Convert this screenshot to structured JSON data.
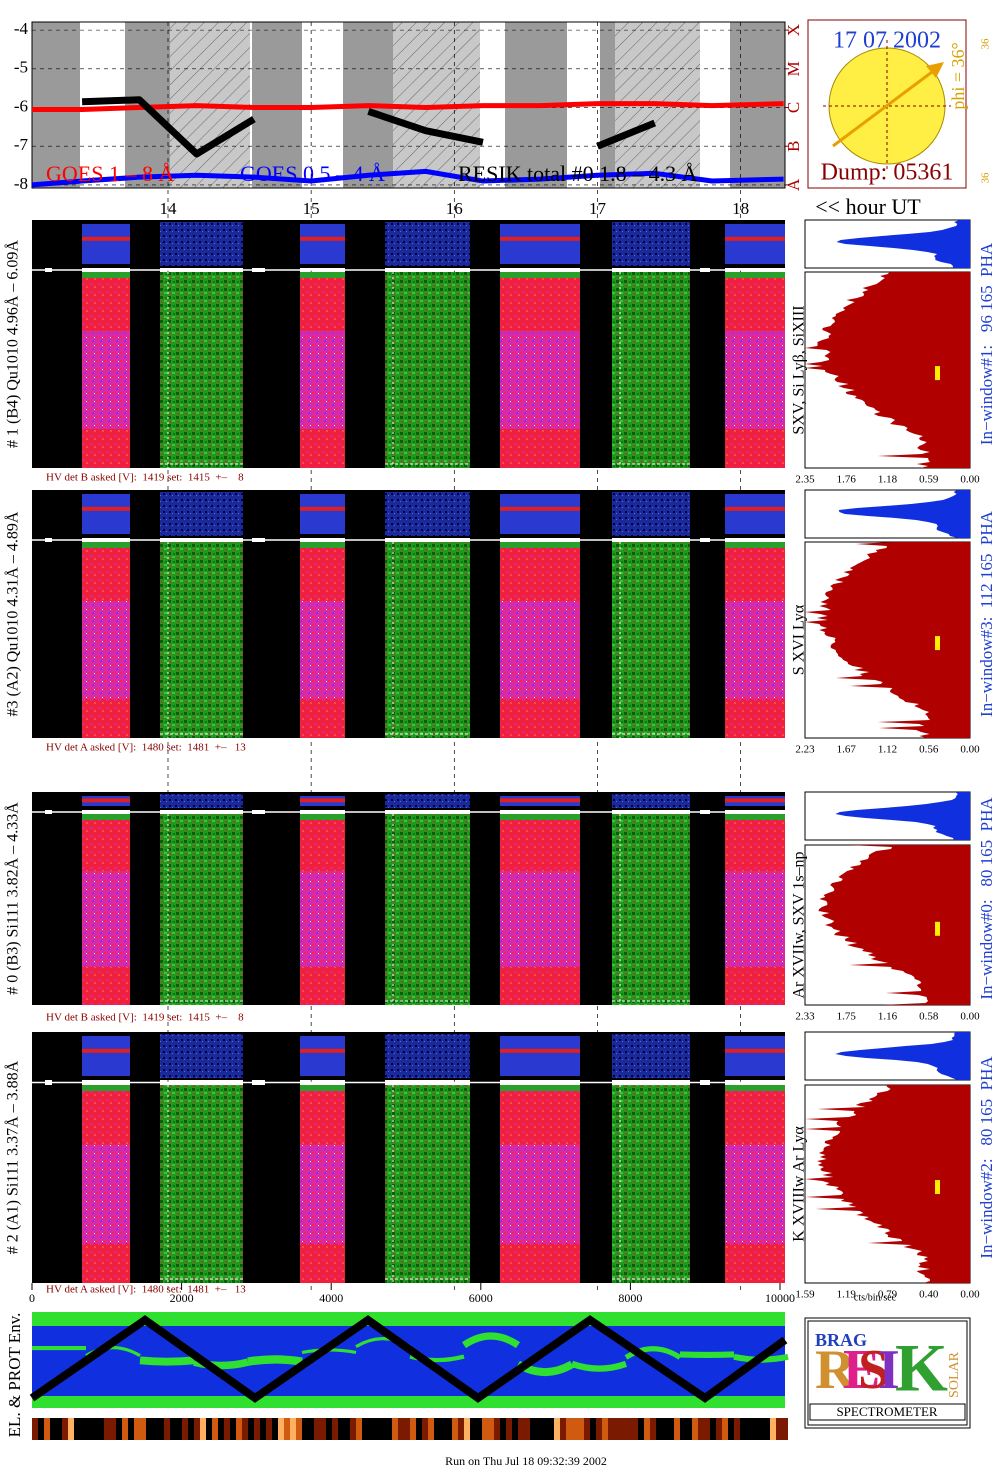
{
  "chart_data": {
    "type": "line",
    "x": [
      13.05,
      13.4,
      13.8,
      14.2,
      14.6,
      15.0,
      15.4,
      15.8,
      16.2,
      16.6,
      17.0,
      17.4,
      17.8,
      18.3
    ],
    "series": [
      {
        "name": "GOES 1 – 8 Å",
        "color": "#ff0000",
        "values": [
          -6.05,
          -6.05,
          -6.0,
          -5.95,
          -6.0,
          -6.0,
          -5.95,
          -6.0,
          -5.95,
          -5.95,
          -5.9,
          -5.9,
          -5.95,
          -5.9
        ]
      },
      {
        "name": "GOES 0.5 – 4 Å",
        "color": "#0000ff",
        "values": [
          -8.0,
          -7.9,
          -7.8,
          -7.75,
          -7.8,
          -7.9,
          -7.75,
          -7.65,
          -7.9,
          -7.85,
          -7.75,
          -7.7,
          -7.9,
          -7.85
        ]
      },
      {
        "name": "RESIK total #0 1.8 – 4.3 Å",
        "color": "#000000",
        "values": [
          null,
          -5.85,
          -5.8,
          -7.2,
          -6.3,
          null,
          -6.1,
          -6.6,
          -6.9,
          null,
          -7.0,
          -6.4,
          null,
          -6.0
        ]
      }
    ],
    "xlim": [
      13.05,
      18.31
    ],
    "xticks": [
      14,
      15,
      16,
      17,
      18
    ],
    "x_label": "<< hour UT",
    "ylim": [
      -8.08,
      -3.79
    ],
    "yticks": [
      -8,
      -7,
      -6,
      -5,
      -4
    ],
    "y2lim": [
      -8.08,
      -3.79
    ],
    "y2ticks": [
      {
        "value": -8,
        "label": "A"
      },
      {
        "value": -7,
        "label": "B"
      },
      {
        "value": -6,
        "label": "C"
      },
      {
        "value": -5,
        "label": "M"
      },
      {
        "value": -4,
        "label": "X"
      }
    ],
    "grid": true
  },
  "sun": {
    "date": "17 07 2002",
    "phi": "phi = 36°",
    "left": "36",
    "right": "36",
    "dump": "Dump: 05361"
  },
  "panels": [
    {
      "label": "# 1 (B4) Qu1010 4.96Å – 6.09Å",
      "hv": "HV det B asked [V]:  1419 set:  1415  +–    8",
      "line_id": "SXV, Si Lyβ, SiXIII",
      "window": "In−window#1:   96 165  PHA",
      "hist_ticks": [
        "2.35",
        "1.76",
        "1.18",
        "0.59",
        "0.00"
      ]
    },
    {
      "label": "#3 (A2) Qu1010  4.31Å – 4.89Å",
      "hv": "HV det A asked [V]:  1480 set:  1481  +–   13",
      "line_id": "S XVI Lyα",
      "window": "In−window#3:  112 165  PHA",
      "hist_ticks": [
        "2.23",
        "1.67",
        "1.12",
        "0.56",
        "0.00"
      ]
    },
    {
      "label": "# 0 (B3) Si111  3.82Å – 4.33Å",
      "hv": "HV det B asked [V]:  1419 set:  1415  +–    8",
      "line_id": "Ar XVIIw, SXV 1s–np",
      "window": "In−window#0:   80 165  PHA",
      "hist_ticks": [
        "2.33",
        "1.75",
        "1.16",
        "0.58",
        "0.00"
      ]
    },
    {
      "label": "# 2 (A1) Si111  3.37Å – 3.88Å",
      "hv": "HV det A asked [V]:  1480 set:  1481  +–   13",
      "line_id": "K XVIIIw  Ar Lyα",
      "window": "In−window#2:   80 165  PHA",
      "hist_ticks": [
        "1.59",
        "1.19",
        "0.79",
        "0.40",
        "0.00"
      ]
    }
  ],
  "pixel_axis": {
    "xlim": [
      0,
      10000
    ],
    "xticks": [
      0,
      2000,
      4000,
      6000,
      8000,
      10000
    ],
    "unit": "cts/bin/sec"
  },
  "env_label": "EL. & PROT Env.",
  "logo": {
    "letters": [
      "R",
      "E",
      "S",
      "I",
      "K"
    ],
    "brag": "BRAG",
    "solar": "SOLAR",
    "name": "SPECTROMETER"
  },
  "footer": "Run on Thu Jul 18 09:32:39 2002"
}
